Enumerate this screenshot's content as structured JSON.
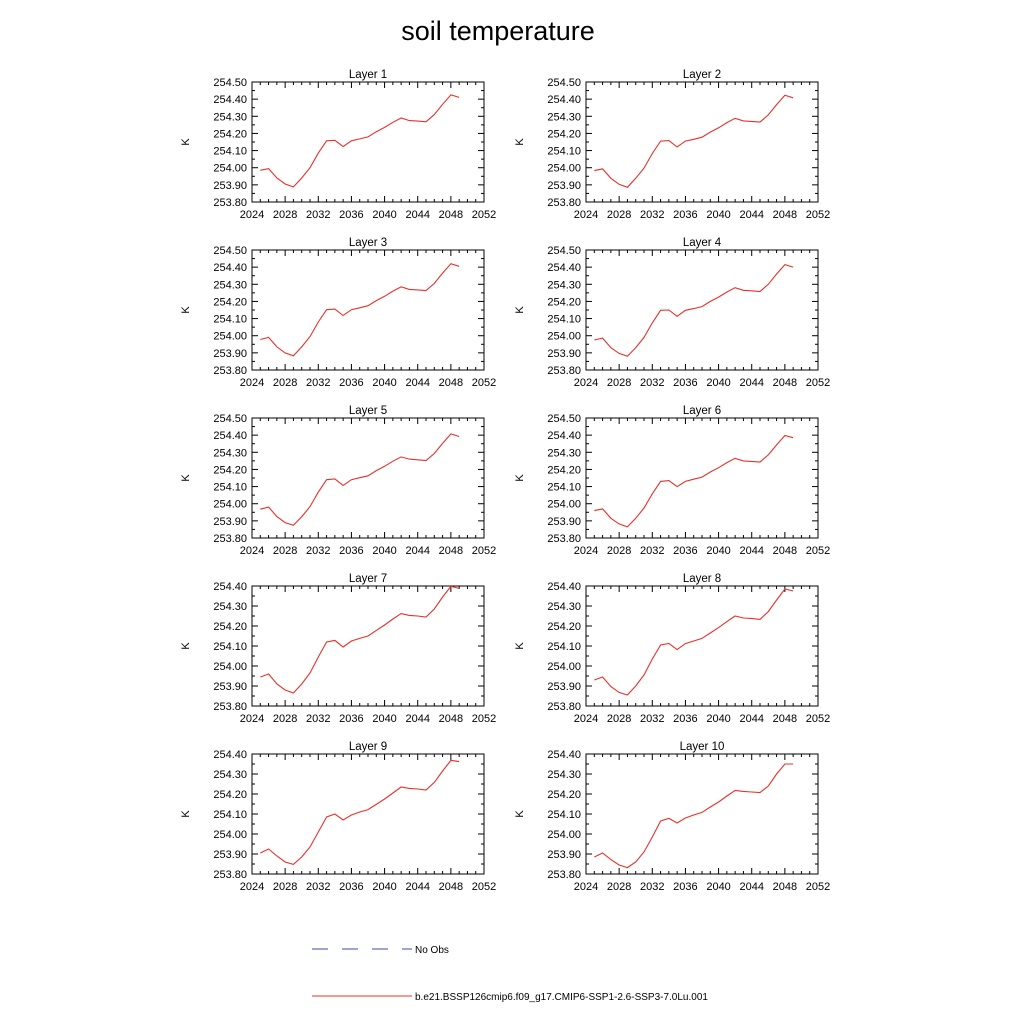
{
  "figure": {
    "title": "soil temperature",
    "legend": {
      "placement": "bottom-center",
      "entries": [
        {
          "label": "No Obs",
          "color": "#3b4ba8",
          "dash": "dashed"
        },
        {
          "label": "b.e21.BSSP126cmip6.f09_g17.CMIP6-SSP1-2.6-SSP3-7.0Lu.001",
          "color": "#e8302a",
          "dash": "solid"
        }
      ]
    }
  },
  "chart_data": [
    {
      "type": "line",
      "title": "Layer 1",
      "ylabel": "K",
      "xlim": [
        2024,
        2052
      ],
      "ylim": [
        253.8,
        254.5
      ],
      "xticks": [
        "2024",
        "2028",
        "2032",
        "2036",
        "2040",
        "2044",
        "2048",
        "2052"
      ],
      "yticks": [
        "253.80",
        "253.90",
        "254.00",
        "254.10",
        "254.20",
        "254.30",
        "254.40",
        "254.50"
      ],
      "series": [
        {
          "name": "b.e21.BSSP126cmip6.f09_g17.CMIP6-SSP1-2.6-SSP3-7.0Lu.001",
          "color": "#e8302a",
          "x": [
            2025,
            2026,
            2027,
            2028,
            2029,
            2030,
            2031,
            2032,
            2033,
            2034,
            2035,
            2036,
            2037,
            2038,
            2039,
            2040,
            2041,
            2042,
            2043,
            2044,
            2045,
            2046,
            2047,
            2048,
            2049
          ],
          "y": [
            253.985,
            253.995,
            253.94,
            253.905,
            253.888,
            253.94,
            254.0,
            254.085,
            254.157,
            254.16,
            254.123,
            254.157,
            254.168,
            254.18,
            254.21,
            254.235,
            254.265,
            254.29,
            254.275,
            254.272,
            254.268,
            254.31,
            254.37,
            254.425,
            254.41
          ]
        }
      ]
    },
    {
      "type": "line",
      "title": "Layer 2",
      "ylabel": "K",
      "xlim": [
        2024,
        2052
      ],
      "ylim": [
        253.8,
        254.5
      ],
      "xticks": [
        "2024",
        "2028",
        "2032",
        "2036",
        "2040",
        "2044",
        "2048",
        "2052"
      ],
      "yticks": [
        "253.80",
        "253.90",
        "254.00",
        "254.10",
        "254.20",
        "254.30",
        "254.40",
        "254.50"
      ],
      "series": [
        {
          "name": "b.e21.BSSP126cmip6.f09_g17.CMIP6-SSP1-2.6-SSP3-7.0Lu.001",
          "color": "#e8302a",
          "x": [
            2025,
            2026,
            2027,
            2028,
            2029,
            2030,
            2031,
            2032,
            2033,
            2034,
            2035,
            2036,
            2037,
            2038,
            2039,
            2040,
            2041,
            2042,
            2043,
            2044,
            2045,
            2046,
            2047,
            2048,
            2049
          ],
          "y": [
            253.983,
            253.993,
            253.938,
            253.903,
            253.886,
            253.938,
            253.998,
            254.083,
            254.155,
            254.158,
            254.121,
            254.155,
            254.166,
            254.178,
            254.208,
            254.233,
            254.263,
            254.288,
            254.273,
            254.27,
            254.266,
            254.308,
            254.368,
            254.423,
            254.408
          ]
        }
      ]
    },
    {
      "type": "line",
      "title": "Layer 3",
      "ylabel": "K",
      "xlim": [
        2024,
        2052
      ],
      "ylim": [
        253.8,
        254.5
      ],
      "xticks": [
        "2024",
        "2028",
        "2032",
        "2036",
        "2040",
        "2044",
        "2048",
        "2052"
      ],
      "yticks": [
        "253.80",
        "253.90",
        "254.00",
        "254.10",
        "254.20",
        "254.30",
        "254.40",
        "254.50"
      ],
      "series": [
        {
          "name": "b.e21.BSSP126cmip6.f09_g17.CMIP6-SSP1-2.6-SSP3-7.0Lu.001",
          "color": "#e8302a",
          "x": [
            2025,
            2026,
            2027,
            2028,
            2029,
            2030,
            2031,
            2032,
            2033,
            2034,
            2035,
            2036,
            2037,
            2038,
            2039,
            2040,
            2041,
            2042,
            2043,
            2044,
            2045,
            2046,
            2047,
            2048,
            2049
          ],
          "y": [
            253.978,
            253.99,
            253.935,
            253.9,
            253.883,
            253.935,
            253.995,
            254.08,
            254.152,
            254.155,
            254.118,
            254.152,
            254.163,
            254.175,
            254.205,
            254.23,
            254.26,
            254.285,
            254.27,
            254.267,
            254.263,
            254.305,
            254.365,
            254.42,
            254.405
          ]
        }
      ]
    },
    {
      "type": "line",
      "title": "Layer 4",
      "ylabel": "K",
      "xlim": [
        2024,
        2052
      ],
      "ylim": [
        253.8,
        254.5
      ],
      "xticks": [
        "2024",
        "2028",
        "2032",
        "2036",
        "2040",
        "2044",
        "2048",
        "2052"
      ],
      "yticks": [
        "253.80",
        "253.90",
        "254.00",
        "254.10",
        "254.20",
        "254.30",
        "254.40",
        "254.50"
      ],
      "series": [
        {
          "name": "b.e21.BSSP126cmip6.f09_g17.CMIP6-SSP1-2.6-SSP3-7.0Lu.001",
          "color": "#e8302a",
          "x": [
            2025,
            2026,
            2027,
            2028,
            2029,
            2030,
            2031,
            2032,
            2033,
            2034,
            2035,
            2036,
            2037,
            2038,
            2039,
            2040,
            2041,
            2042,
            2043,
            2044,
            2045,
            2046,
            2047,
            2048,
            2049
          ],
          "y": [
            253.975,
            253.986,
            253.93,
            253.897,
            253.88,
            253.93,
            253.99,
            254.075,
            254.148,
            254.15,
            254.113,
            254.148,
            254.158,
            254.17,
            254.2,
            254.225,
            254.255,
            254.28,
            254.265,
            254.262,
            254.258,
            254.3,
            254.36,
            254.415,
            254.4
          ]
        }
      ]
    },
    {
      "type": "line",
      "title": "Layer 5",
      "ylabel": "K",
      "xlim": [
        2024,
        2052
      ],
      "ylim": [
        253.8,
        254.5
      ],
      "xticks": [
        "2024",
        "2028",
        "2032",
        "2036",
        "2040",
        "2044",
        "2048",
        "2052"
      ],
      "yticks": [
        "253.80",
        "253.90",
        "254.00",
        "254.10",
        "254.20",
        "254.30",
        "254.40",
        "254.50"
      ],
      "series": [
        {
          "name": "b.e21.BSSP126cmip6.f09_g17.CMIP6-SSP1-2.6-SSP3-7.0Lu.001",
          "color": "#e8302a",
          "x": [
            2025,
            2026,
            2027,
            2028,
            2029,
            2030,
            2031,
            2032,
            2033,
            2034,
            2035,
            2036,
            2037,
            2038,
            2039,
            2040,
            2041,
            2042,
            2043,
            2044,
            2045,
            2046,
            2047,
            2048,
            2049
          ],
          "y": [
            253.968,
            253.98,
            253.925,
            253.89,
            253.874,
            253.924,
            253.983,
            254.068,
            254.14,
            254.145,
            254.107,
            254.14,
            254.152,
            254.163,
            254.193,
            254.218,
            254.248,
            254.273,
            254.26,
            254.256,
            254.252,
            254.293,
            254.352,
            254.407,
            254.392
          ]
        }
      ]
    },
    {
      "type": "line",
      "title": "Layer 6",
      "ylabel": "K",
      "xlim": [
        2024,
        2052
      ],
      "ylim": [
        253.8,
        254.5
      ],
      "xticks": [
        "2024",
        "2028",
        "2032",
        "2036",
        "2040",
        "2044",
        "2048",
        "2052"
      ],
      "yticks": [
        "253.80",
        "253.90",
        "254.00",
        "254.10",
        "254.20",
        "254.30",
        "254.40",
        "254.50"
      ],
      "series": [
        {
          "name": "b.e21.BSSP126cmip6.f09_g17.CMIP6-SSP1-2.6-SSP3-7.0Lu.001",
          "color": "#e8302a",
          "x": [
            2025,
            2026,
            2027,
            2028,
            2029,
            2030,
            2031,
            2032,
            2033,
            2034,
            2035,
            2036,
            2037,
            2038,
            2039,
            2040,
            2041,
            2042,
            2043,
            2044,
            2045,
            2046,
            2047,
            2048,
            2049
          ],
          "y": [
            253.96,
            253.97,
            253.915,
            253.882,
            253.865,
            253.915,
            253.975,
            254.058,
            254.13,
            254.135,
            254.1,
            254.13,
            254.143,
            254.155,
            254.185,
            254.21,
            254.24,
            254.265,
            254.25,
            254.247,
            254.243,
            254.285,
            254.343,
            254.398,
            254.385
          ]
        }
      ]
    },
    {
      "type": "line",
      "title": "Layer 7",
      "ylabel": "K",
      "xlim": [
        2024,
        2052
      ],
      "ylim": [
        253.8,
        254.4
      ],
      "xticks": [
        "2024",
        "2028",
        "2032",
        "2036",
        "2040",
        "2044",
        "2048",
        "2052"
      ],
      "yticks": [
        "253.80",
        "253.90",
        "254.00",
        "254.10",
        "254.20",
        "254.30",
        "254.40"
      ],
      "series": [
        {
          "name": "b.e21.BSSP126cmip6.f09_g17.CMIP6-SSP1-2.6-SSP3-7.0Lu.001",
          "color": "#e8302a",
          "x": [
            2025,
            2026,
            2027,
            2028,
            2029,
            2030,
            2031,
            2032,
            2033,
            2034,
            2035,
            2036,
            2037,
            2038,
            2039,
            2040,
            2041,
            2042,
            2043,
            2044,
            2045,
            2046,
            2047,
            2048,
            2049
          ],
          "y": [
            253.945,
            253.96,
            253.91,
            253.88,
            253.865,
            253.91,
            253.965,
            254.045,
            254.12,
            254.128,
            254.095,
            254.125,
            254.138,
            254.15,
            254.178,
            254.205,
            254.235,
            254.262,
            254.253,
            254.25,
            254.245,
            254.285,
            254.345,
            254.398,
            254.388
          ]
        }
      ]
    },
    {
      "type": "line",
      "title": "Layer 8",
      "ylabel": "K",
      "xlim": [
        2024,
        2052
      ],
      "ylim": [
        253.8,
        254.4
      ],
      "xticks": [
        "2024",
        "2028",
        "2032",
        "2036",
        "2040",
        "2044",
        "2048",
        "2052"
      ],
      "yticks": [
        "253.80",
        "253.90",
        "254.00",
        "254.10",
        "254.20",
        "254.30",
        "254.40"
      ],
      "series": [
        {
          "name": "b.e21.BSSP126cmip6.f09_g17.CMIP6-SSP1-2.6-SSP3-7.0Lu.001",
          "color": "#e8302a",
          "x": [
            2025,
            2026,
            2027,
            2028,
            2029,
            2030,
            2031,
            2032,
            2033,
            2034,
            2035,
            2036,
            2037,
            2038,
            2039,
            2040,
            2041,
            2042,
            2043,
            2044,
            2045,
            2046,
            2047,
            2048,
            2049
          ],
          "y": [
            253.93,
            253.945,
            253.897,
            253.868,
            253.855,
            253.9,
            253.955,
            254.035,
            254.105,
            254.113,
            254.082,
            254.112,
            254.125,
            254.138,
            254.165,
            254.192,
            254.222,
            254.25,
            254.24,
            254.238,
            254.233,
            254.272,
            254.33,
            254.385,
            254.375
          ]
        }
      ]
    },
    {
      "type": "line",
      "title": "Layer 9",
      "ylabel": "K",
      "xlim": [
        2024,
        2052
      ],
      "ylim": [
        253.8,
        254.4
      ],
      "xticks": [
        "2024",
        "2028",
        "2032",
        "2036",
        "2040",
        "2044",
        "2048",
        "2052"
      ],
      "yticks": [
        "253.80",
        "253.90",
        "254.00",
        "254.10",
        "254.20",
        "254.30",
        "254.40"
      ],
      "series": [
        {
          "name": "b.e21.BSSP126cmip6.f09_g17.CMIP6-SSP1-2.6-SSP3-7.0Lu.001",
          "color": "#e8302a",
          "x": [
            2025,
            2026,
            2027,
            2028,
            2029,
            2030,
            2031,
            2032,
            2033,
            2034,
            2035,
            2036,
            2037,
            2038,
            2039,
            2040,
            2041,
            2042,
            2043,
            2044,
            2045,
            2046,
            2047,
            2048,
            2049
          ],
          "y": [
            253.905,
            253.925,
            253.89,
            253.86,
            253.848,
            253.885,
            253.935,
            254.01,
            254.085,
            254.1,
            254.07,
            254.095,
            254.11,
            254.122,
            254.148,
            254.175,
            254.205,
            254.235,
            254.228,
            254.225,
            254.22,
            254.258,
            254.315,
            254.368,
            254.362
          ]
        }
      ]
    },
    {
      "type": "line",
      "title": "Layer 10",
      "ylabel": "K",
      "xlim": [
        2024,
        2052
      ],
      "ylim": [
        253.8,
        254.4
      ],
      "xticks": [
        "2024",
        "2028",
        "2032",
        "2036",
        "2040",
        "2044",
        "2048",
        "2052"
      ],
      "yticks": [
        "253.80",
        "253.90",
        "254.00",
        "254.10",
        "254.20",
        "254.30",
        "254.40"
      ],
      "series": [
        {
          "name": "b.e21.BSSP126cmip6.f09_g17.CMIP6-SSP1-2.6-SSP3-7.0Lu.001",
          "color": "#e8302a",
          "x": [
            2025,
            2026,
            2027,
            2028,
            2029,
            2030,
            2031,
            2032,
            2033,
            2034,
            2035,
            2036,
            2037,
            2038,
            2039,
            2040,
            2041,
            2042,
            2043,
            2044,
            2045,
            2046,
            2047,
            2048,
            2049
          ],
          "y": [
            253.885,
            253.905,
            253.872,
            253.845,
            253.832,
            253.86,
            253.91,
            253.985,
            254.065,
            254.078,
            254.055,
            254.08,
            254.095,
            254.108,
            254.135,
            254.16,
            254.19,
            254.218,
            254.213,
            254.21,
            254.207,
            254.24,
            254.3,
            254.35,
            254.35
          ]
        }
      ]
    }
  ]
}
